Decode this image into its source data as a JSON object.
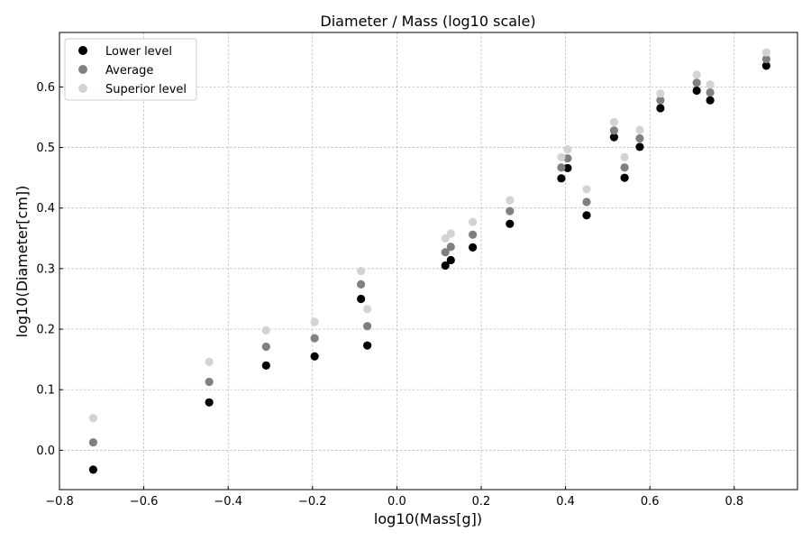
{
  "chart_data": {
    "type": "scatter",
    "title": "Diameter / Mass (log10 scale)",
    "xlabel": "log10(Mass[g])",
    "ylabel": "log10(Diameter[cm])",
    "xlim": [
      -0.8,
      0.95
    ],
    "ylim": [
      -0.065,
      0.69
    ],
    "xticks": [
      -0.8,
      -0.6,
      -0.4,
      -0.2,
      0.0,
      0.2,
      0.4,
      0.6,
      0.8
    ],
    "xtick_labels": [
      "−0.8",
      "−0.6",
      "−0.4",
      "−0.2",
      "0.0",
      "0.2",
      "0.4",
      "0.6",
      "0.8"
    ],
    "yticks": [
      0.0,
      0.1,
      0.2,
      0.3,
      0.4,
      0.5,
      0.6
    ],
    "ytick_labels": [
      "0.0",
      "0.1",
      "0.2",
      "0.3",
      "0.4",
      "0.5",
      "0.6"
    ],
    "grid": true,
    "legend_position": "top-left",
    "x": [
      -0.72,
      -0.445,
      -0.31,
      -0.195,
      -0.085,
      -0.07,
      0.115,
      0.128,
      0.18,
      0.268,
      0.39,
      0.405,
      0.45,
      0.515,
      0.54,
      0.576,
      0.625,
      0.711,
      0.743,
      0.876
    ],
    "series": [
      {
        "name": "Lower level",
        "color": "#000000",
        "values": [
          -0.032,
          0.079,
          0.14,
          0.155,
          0.25,
          0.173,
          0.305,
          0.314,
          0.335,
          0.374,
          0.449,
          0.466,
          0.388,
          0.517,
          0.45,
          0.501,
          0.565,
          0.594,
          0.578,
          0.635
        ]
      },
      {
        "name": "Average",
        "color": "#808080",
        "values": [
          0.013,
          0.113,
          0.171,
          0.185,
          0.274,
          0.205,
          0.327,
          0.336,
          0.356,
          0.395,
          0.467,
          0.482,
          0.41,
          0.528,
          0.467,
          0.515,
          0.578,
          0.607,
          0.591,
          0.646
        ]
      },
      {
        "name": "Superior level",
        "color": "#d3d3d3",
        "values": [
          0.053,
          0.146,
          0.198,
          0.212,
          0.296,
          0.233,
          0.35,
          0.358,
          0.377,
          0.413,
          0.484,
          0.497,
          0.431,
          0.542,
          0.484,
          0.529,
          0.589,
          0.62,
          0.604,
          0.657
        ]
      }
    ]
  }
}
